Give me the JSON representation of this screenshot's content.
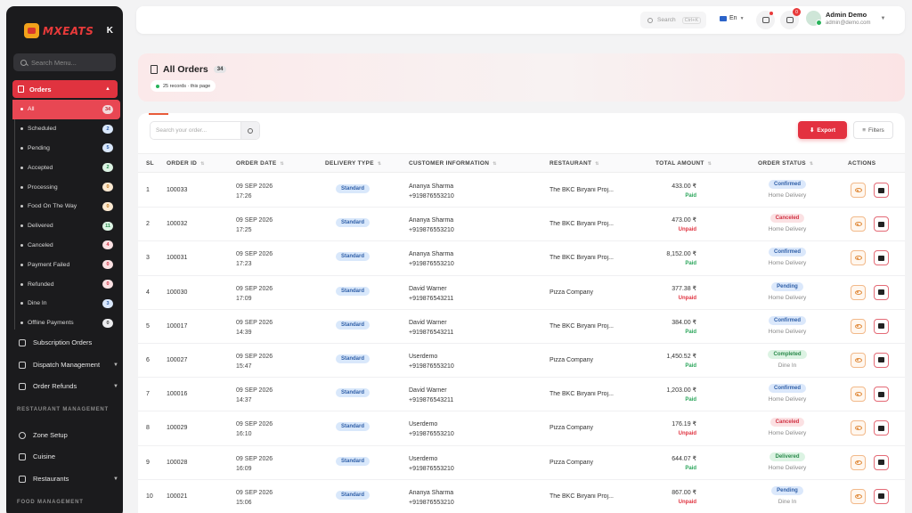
{
  "brand": {
    "name": "MXEATS",
    "collapse_icon": "K"
  },
  "sidebar": {
    "search_placeholder": "Search Menu...",
    "orders_label": "Orders",
    "sub_items": [
      {
        "label": "All",
        "count": "34",
        "color": "#f2d8da",
        "text_color": "#c02733",
        "active": true
      },
      {
        "label": "Scheduled",
        "count": "2",
        "color": "#d9e7fb",
        "text_color": "#2f5fa8"
      },
      {
        "label": "Pending",
        "count": "5",
        "color": "#d9e7fb",
        "text_color": "#2f5fa8"
      },
      {
        "label": "Accepted",
        "count": "2",
        "color": "#dcf3e3",
        "text_color": "#2a8a4b"
      },
      {
        "label": "Processing",
        "count": "0",
        "color": "#fbe8d0",
        "text_color": "#c07a20"
      },
      {
        "label": "Food On The Way",
        "count": "0",
        "color": "#fbe8d0",
        "text_color": "#c07a20"
      },
      {
        "label": "Delivered",
        "count": "11",
        "color": "#dcf3e3",
        "text_color": "#2a8a4b"
      },
      {
        "label": "Canceled",
        "count": "4",
        "color": "#fbe1e3",
        "text_color": "#d13344"
      },
      {
        "label": "Payment Failed",
        "count": "0",
        "color": "#fbe1e3",
        "text_color": "#d13344"
      },
      {
        "label": "Refunded",
        "count": "0",
        "color": "#fbe1e3",
        "text_color": "#d13344"
      },
      {
        "label": "Dine In",
        "count": "3",
        "color": "#d9e7fb",
        "text_color": "#2f5fa8"
      },
      {
        "label": "Offline Payments",
        "count": "0",
        "color": "#ececee",
        "text_color": "#444"
      }
    ],
    "subscription_orders": "Subscription Orders",
    "dispatch_management": "Dispatch Management",
    "order_refunds": "Order Refunds",
    "section_restaurant": "RESTAURANT MANAGEMENT",
    "zone_setup": "Zone Setup",
    "cuisine": "Cuisine",
    "restaurants": "Restaurants",
    "section_food": "FOOD MANAGEMENT"
  },
  "header": {
    "search_label": "Search",
    "search_shortcut": "Ctrl+K",
    "language": "En",
    "cart_badge": "0",
    "user_name": "Admin Demo",
    "user_email": "admin@demo.com"
  },
  "page": {
    "title": "All Orders",
    "title_count": "34",
    "records_text": "25 records · this page"
  },
  "toolbar": {
    "search_placeholder": "Search your order...",
    "export_label": "Export",
    "filters_label": "Filters"
  },
  "table": {
    "headers": [
      "SL",
      "ORDER ID",
      "ORDER DATE",
      "DELIVERY TYPE",
      "CUSTOMER INFORMATION",
      "RESTAURANT",
      "TOTAL AMOUNT",
      "ORDER STATUS",
      "ACTIONS"
    ],
    "rows": [
      {
        "sl": "1",
        "id": "100033",
        "date": "09 SEP 2026",
        "time": "17:26",
        "type": "Standard",
        "customer": "Ananya Sharma",
        "phone": "+919876553210",
        "restaurant": "The BKC Biryani Proj...",
        "amount": "433.00 ₹",
        "payment": "Paid",
        "paid": true,
        "status": "Confirmed",
        "status_class": "st-confirmed",
        "method": "Home Delivery"
      },
      {
        "sl": "2",
        "id": "100032",
        "date": "09 SEP 2026",
        "time": "17:25",
        "type": "Standard",
        "customer": "Ananya Sharma",
        "phone": "+919876553210",
        "restaurant": "The BKC Biryani Proj...",
        "amount": "473.00 ₹",
        "payment": "Unpaid",
        "paid": false,
        "status": "Canceled",
        "status_class": "st-canceled",
        "method": "Home Delivery"
      },
      {
        "sl": "3",
        "id": "100031",
        "date": "09 SEP 2026",
        "time": "17:23",
        "type": "Standard",
        "customer": "Ananya Sharma",
        "phone": "+919876553210",
        "restaurant": "The BKC Biryani Proj...",
        "amount": "8,152.00 ₹",
        "payment": "Paid",
        "paid": true,
        "status": "Confirmed",
        "status_class": "st-confirmed",
        "method": "Home Delivery"
      },
      {
        "sl": "4",
        "id": "100030",
        "date": "09 SEP 2026",
        "time": "17:09",
        "type": "Standard",
        "customer": "David Warner",
        "phone": "+919876543211",
        "restaurant": "Pizza Company",
        "amount": "377.38 ₹",
        "payment": "Unpaid",
        "paid": false,
        "status": "Pending",
        "status_class": "st-pending",
        "method": "Home Delivery"
      },
      {
        "sl": "5",
        "id": "100017",
        "date": "09 SEP 2026",
        "time": "14:39",
        "type": "Standard",
        "customer": "David Warner",
        "phone": "+919876543211",
        "restaurant": "The BKC Biryani Proj...",
        "amount": "384.00 ₹",
        "payment": "Paid",
        "paid": true,
        "status": "Confirmed",
        "status_class": "st-confirmed",
        "method": "Home Delivery"
      },
      {
        "sl": "6",
        "id": "100027",
        "date": "09 SEP 2026",
        "time": "15:47",
        "type": "Standard",
        "customer": "Userdemo",
        "phone": "+919876553210",
        "restaurant": "Pizza Company",
        "amount": "1,450.52 ₹",
        "payment": "Paid",
        "paid": true,
        "status": "Completed",
        "status_class": "st-completed",
        "method": "Dine In"
      },
      {
        "sl": "7",
        "id": "100016",
        "date": "09 SEP 2026",
        "time": "14:37",
        "type": "Standard",
        "customer": "David Warner",
        "phone": "+919876543211",
        "restaurant": "The BKC Biryani Proj...",
        "amount": "1,203.00 ₹",
        "payment": "Paid",
        "paid": true,
        "status": "Confirmed",
        "status_class": "st-confirmed",
        "method": "Home Delivery"
      },
      {
        "sl": "8",
        "id": "100029",
        "date": "09 SEP 2026",
        "time": "16:10",
        "type": "Standard",
        "customer": "Userdemo",
        "phone": "+919876553210",
        "restaurant": "Pizza Company",
        "amount": "176.19 ₹",
        "payment": "Unpaid",
        "paid": false,
        "status": "Canceled",
        "status_class": "st-canceled",
        "method": "Home Delivery"
      },
      {
        "sl": "9",
        "id": "100028",
        "date": "09 SEP 2026",
        "time": "16:09",
        "type": "Standard",
        "customer": "Userdemo",
        "phone": "+919876553210",
        "restaurant": "Pizza Company",
        "amount": "644.07 ₹",
        "payment": "Paid",
        "paid": true,
        "status": "Delivered",
        "status_class": "st-delivered",
        "method": "Home Delivery"
      },
      {
        "sl": "10",
        "id": "100021",
        "date": "09 SEP 2026",
        "time": "15:06",
        "type": "Standard",
        "customer": "Ananya Sharma",
        "phone": "+919876553210",
        "restaurant": "The BKC Biryani Proj...",
        "amount": "867.00 ₹",
        "payment": "Unpaid",
        "paid": false,
        "status": "Pending",
        "status_class": "st-pending",
        "method": "Dine In"
      }
    ]
  }
}
